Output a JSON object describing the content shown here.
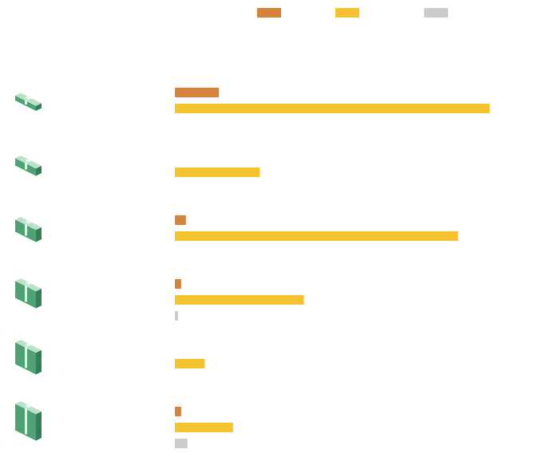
{
  "chart_data": {
    "type": "bar",
    "orientation": "horizontal",
    "title": "",
    "xlabel": "",
    "ylabel": "",
    "legend_position": "top",
    "x_max": 100,
    "categories": [
      "",
      "",
      "",
      "",
      "",
      ""
    ],
    "category_icons": [
      "money-stack-icon-level-1",
      "money-stack-icon-level-2",
      "money-stack-icon-level-3",
      "money-stack-icon-level-4",
      "money-stack-icon-level-5",
      "money-stack-icon-level-6"
    ],
    "series": [
      {
        "color": "#d4833c",
        "values": [
          14,
          0,
          3.5,
          2,
          0,
          2
        ]
      },
      {
        "color": "#f6c232",
        "values": [
          100,
          27,
          90,
          41,
          9.5,
          18.5
        ]
      },
      {
        "color": "#cccccc",
        "values": [
          0,
          0,
          0,
          1,
          0,
          4
        ]
      }
    ]
  }
}
